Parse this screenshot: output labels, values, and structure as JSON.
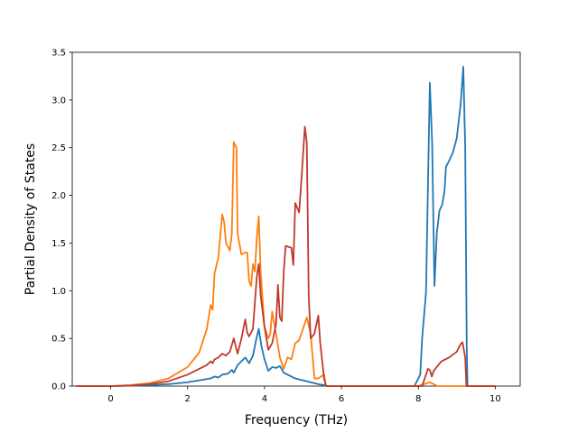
{
  "chart_data": {
    "type": "line",
    "xlabel": "Frequency (THz)",
    "ylabel": "Partial Density of States",
    "xlim": [
      -1.0,
      10.65
    ],
    "ylim": [
      0,
      3.5
    ],
    "x_ticks": [
      0,
      2,
      4,
      6,
      8,
      10
    ],
    "x_tick_labels": [
      "0",
      "2",
      "4",
      "6",
      "8",
      "10"
    ],
    "y_ticks": [
      0.0,
      0.5,
      1.0,
      1.5,
      2.0,
      2.5,
      3.0,
      3.5
    ],
    "y_tick_labels": [
      "0.0",
      "0.5",
      "1.0",
      "1.5",
      "2.0",
      "2.5",
      "3.0",
      "3.5"
    ],
    "grid": false,
    "legend": "none",
    "series": [
      {
        "color": "#1f77b4",
        "points": [
          [
            -0.9,
            0
          ],
          [
            0,
            0
          ],
          [
            0.5,
            0.004
          ],
          [
            1.0,
            0.01
          ],
          [
            1.5,
            0.02
          ],
          [
            2.0,
            0.04
          ],
          [
            2.3,
            0.06
          ],
          [
            2.6,
            0.08
          ],
          [
            2.7,
            0.1
          ],
          [
            2.8,
            0.09
          ],
          [
            2.9,
            0.12
          ],
          [
            3.05,
            0.13
          ],
          [
            3.15,
            0.17
          ],
          [
            3.2,
            0.14
          ],
          [
            3.3,
            0.22
          ],
          [
            3.4,
            0.26
          ],
          [
            3.5,
            0.3
          ],
          [
            3.6,
            0.24
          ],
          [
            3.7,
            0.32
          ],
          [
            3.78,
            0.48
          ],
          [
            3.85,
            0.6
          ],
          [
            3.92,
            0.42
          ],
          [
            4.0,
            0.28
          ],
          [
            4.1,
            0.16
          ],
          [
            4.2,
            0.2
          ],
          [
            4.3,
            0.19
          ],
          [
            4.4,
            0.21
          ],
          [
            4.5,
            0.14
          ],
          [
            4.6,
            0.12
          ],
          [
            4.8,
            0.08
          ],
          [
            5.0,
            0.06
          ],
          [
            5.2,
            0.04
          ],
          [
            5.4,
            0.02
          ],
          [
            5.55,
            0.01
          ],
          [
            5.6,
            0
          ],
          [
            7.9,
            0
          ],
          [
            8.05,
            0.12
          ],
          [
            8.1,
            0.5
          ],
          [
            8.2,
            0.98
          ],
          [
            8.3,
            3.18
          ],
          [
            8.36,
            2.55
          ],
          [
            8.42,
            1.05
          ],
          [
            8.48,
            1.6
          ],
          [
            8.55,
            1.84
          ],
          [
            8.62,
            1.9
          ],
          [
            8.68,
            2.04
          ],
          [
            8.72,
            2.3
          ],
          [
            8.8,
            2.36
          ],
          [
            8.9,
            2.45
          ],
          [
            9.0,
            2.6
          ],
          [
            9.1,
            2.95
          ],
          [
            9.17,
            3.35
          ],
          [
            9.22,
            2.5
          ],
          [
            9.26,
            0.4
          ],
          [
            9.28,
            0
          ],
          [
            10.0,
            0
          ]
        ]
      },
      {
        "color": "#ff7f0e",
        "points": [
          [
            -0.9,
            0
          ],
          [
            0,
            0
          ],
          [
            0.5,
            0.01
          ],
          [
            1.0,
            0.03
          ],
          [
            1.5,
            0.08
          ],
          [
            2.0,
            0.2
          ],
          [
            2.3,
            0.35
          ],
          [
            2.5,
            0.6
          ],
          [
            2.6,
            0.85
          ],
          [
            2.65,
            0.8
          ],
          [
            2.7,
            1.18
          ],
          [
            2.8,
            1.35
          ],
          [
            2.9,
            1.8
          ],
          [
            2.95,
            1.72
          ],
          [
            3.0,
            1.5
          ],
          [
            3.1,
            1.42
          ],
          [
            3.15,
            1.6
          ],
          [
            3.2,
            2.56
          ],
          [
            3.27,
            2.5
          ],
          [
            3.3,
            1.6
          ],
          [
            3.4,
            1.38
          ],
          [
            3.5,
            1.4
          ],
          [
            3.55,
            1.4
          ],
          [
            3.6,
            1.1
          ],
          [
            3.65,
            1.05
          ],
          [
            3.7,
            1.28
          ],
          [
            3.75,
            1.2
          ],
          [
            3.8,
            1.55
          ],
          [
            3.85,
            1.78
          ],
          [
            3.9,
            1.2
          ],
          [
            4.0,
            0.62
          ],
          [
            4.1,
            0.5
          ],
          [
            4.15,
            0.55
          ],
          [
            4.2,
            0.78
          ],
          [
            4.3,
            0.55
          ],
          [
            4.4,
            0.3
          ],
          [
            4.5,
            0.18
          ],
          [
            4.6,
            0.3
          ],
          [
            4.7,
            0.28
          ],
          [
            4.8,
            0.45
          ],
          [
            4.9,
            0.48
          ],
          [
            5.0,
            0.6
          ],
          [
            5.1,
            0.72
          ],
          [
            5.2,
            0.55
          ],
          [
            5.3,
            0.08
          ],
          [
            5.4,
            0.08
          ],
          [
            5.55,
            0.12
          ],
          [
            5.6,
            0
          ],
          [
            8.0,
            0
          ],
          [
            8.3,
            0.04
          ],
          [
            8.5,
            0
          ],
          [
            10.0,
            0
          ]
        ]
      },
      {
        "color": "#c0392b",
        "points": [
          [
            -0.9,
            0
          ],
          [
            0,
            0
          ],
          [
            0.5,
            0.005
          ],
          [
            1.0,
            0.02
          ],
          [
            1.5,
            0.05
          ],
          [
            2.0,
            0.12
          ],
          [
            2.3,
            0.18
          ],
          [
            2.5,
            0.22
          ],
          [
            2.6,
            0.26
          ],
          [
            2.65,
            0.24
          ],
          [
            2.7,
            0.28
          ],
          [
            2.8,
            0.3
          ],
          [
            2.9,
            0.34
          ],
          [
            3.0,
            0.32
          ],
          [
            3.1,
            0.36
          ],
          [
            3.2,
            0.5
          ],
          [
            3.3,
            0.34
          ],
          [
            3.4,
            0.5
          ],
          [
            3.5,
            0.7
          ],
          [
            3.55,
            0.56
          ],
          [
            3.6,
            0.52
          ],
          [
            3.7,
            0.6
          ],
          [
            3.8,
            1.15
          ],
          [
            3.85,
            1.28
          ],
          [
            3.9,
            0.95
          ],
          [
            4.0,
            0.62
          ],
          [
            4.1,
            0.38
          ],
          [
            4.2,
            0.45
          ],
          [
            4.3,
            0.65
          ],
          [
            4.35,
            1.06
          ],
          [
            4.4,
            0.72
          ],
          [
            4.45,
            0.68
          ],
          [
            4.5,
            1.2
          ],
          [
            4.55,
            1.47
          ],
          [
            4.7,
            1.45
          ],
          [
            4.75,
            1.27
          ],
          [
            4.8,
            1.92
          ],
          [
            4.9,
            1.82
          ],
          [
            4.95,
            2.1
          ],
          [
            5.05,
            2.72
          ],
          [
            5.1,
            2.55
          ],
          [
            5.15,
            0.95
          ],
          [
            5.2,
            0.5
          ],
          [
            5.3,
            0.55
          ],
          [
            5.4,
            0.74
          ],
          [
            5.45,
            0.45
          ],
          [
            5.55,
            0.08
          ],
          [
            5.6,
            0
          ],
          [
            8.1,
            0
          ],
          [
            8.25,
            0.18
          ],
          [
            8.3,
            0.17
          ],
          [
            8.35,
            0.1
          ],
          [
            8.4,
            0.16
          ],
          [
            8.6,
            0.26
          ],
          [
            8.8,
            0.3
          ],
          [
            9.0,
            0.36
          ],
          [
            9.1,
            0.44
          ],
          [
            9.15,
            0.46
          ],
          [
            9.22,
            0.3
          ],
          [
            9.25,
            0
          ],
          [
            10.0,
            0
          ]
        ]
      }
    ]
  }
}
